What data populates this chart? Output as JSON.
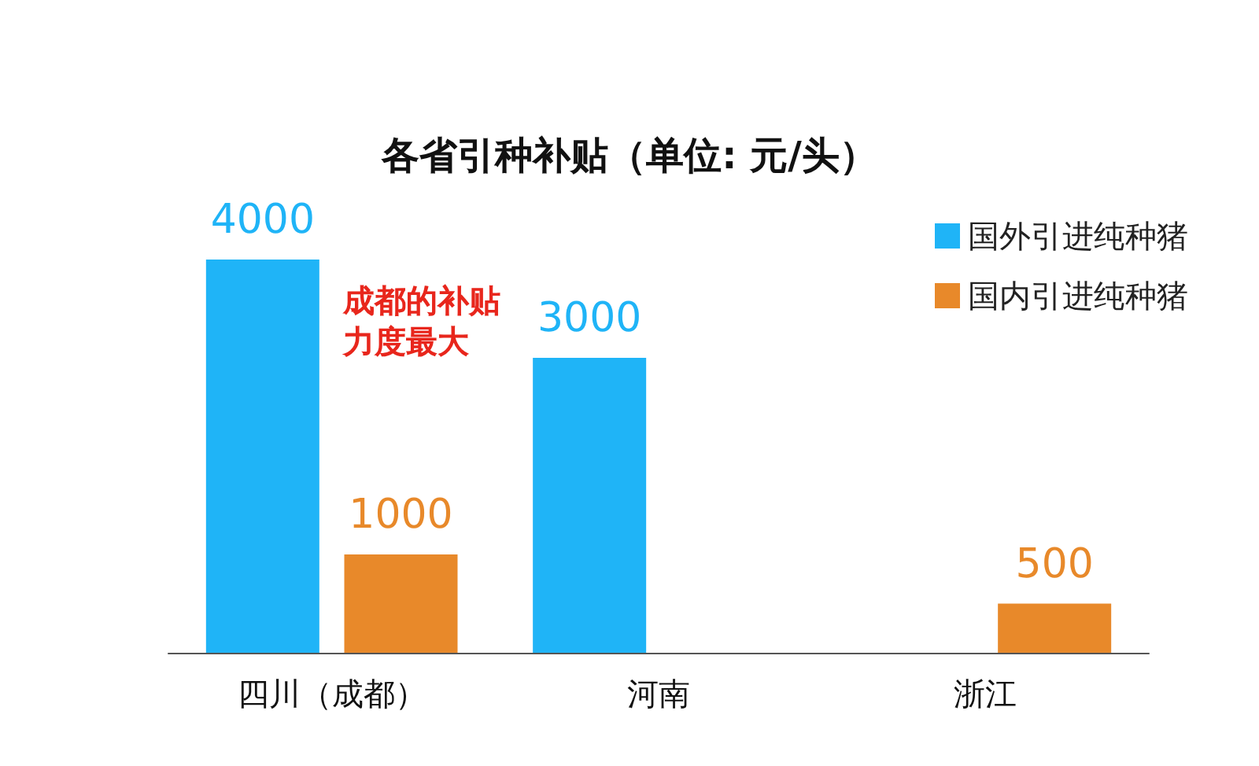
{
  "chart_data": {
    "type": "bar",
    "title": "各省引种补贴（单位: 元/头）",
    "categories": [
      "四川（成都）",
      "河南",
      "浙江"
    ],
    "series": [
      {
        "name": "国外引进纯种猪",
        "color": "#1fb4f7",
        "values": [
          4000,
          3000,
          null
        ]
      },
      {
        "name": "国内引进纯种猪",
        "color": "#e8892a",
        "values": [
          1000,
          null,
          500
        ]
      }
    ],
    "data_labels": true,
    "legend": "top right",
    "annotations": [
      "成都的补贴力度最大"
    ]
  }
}
